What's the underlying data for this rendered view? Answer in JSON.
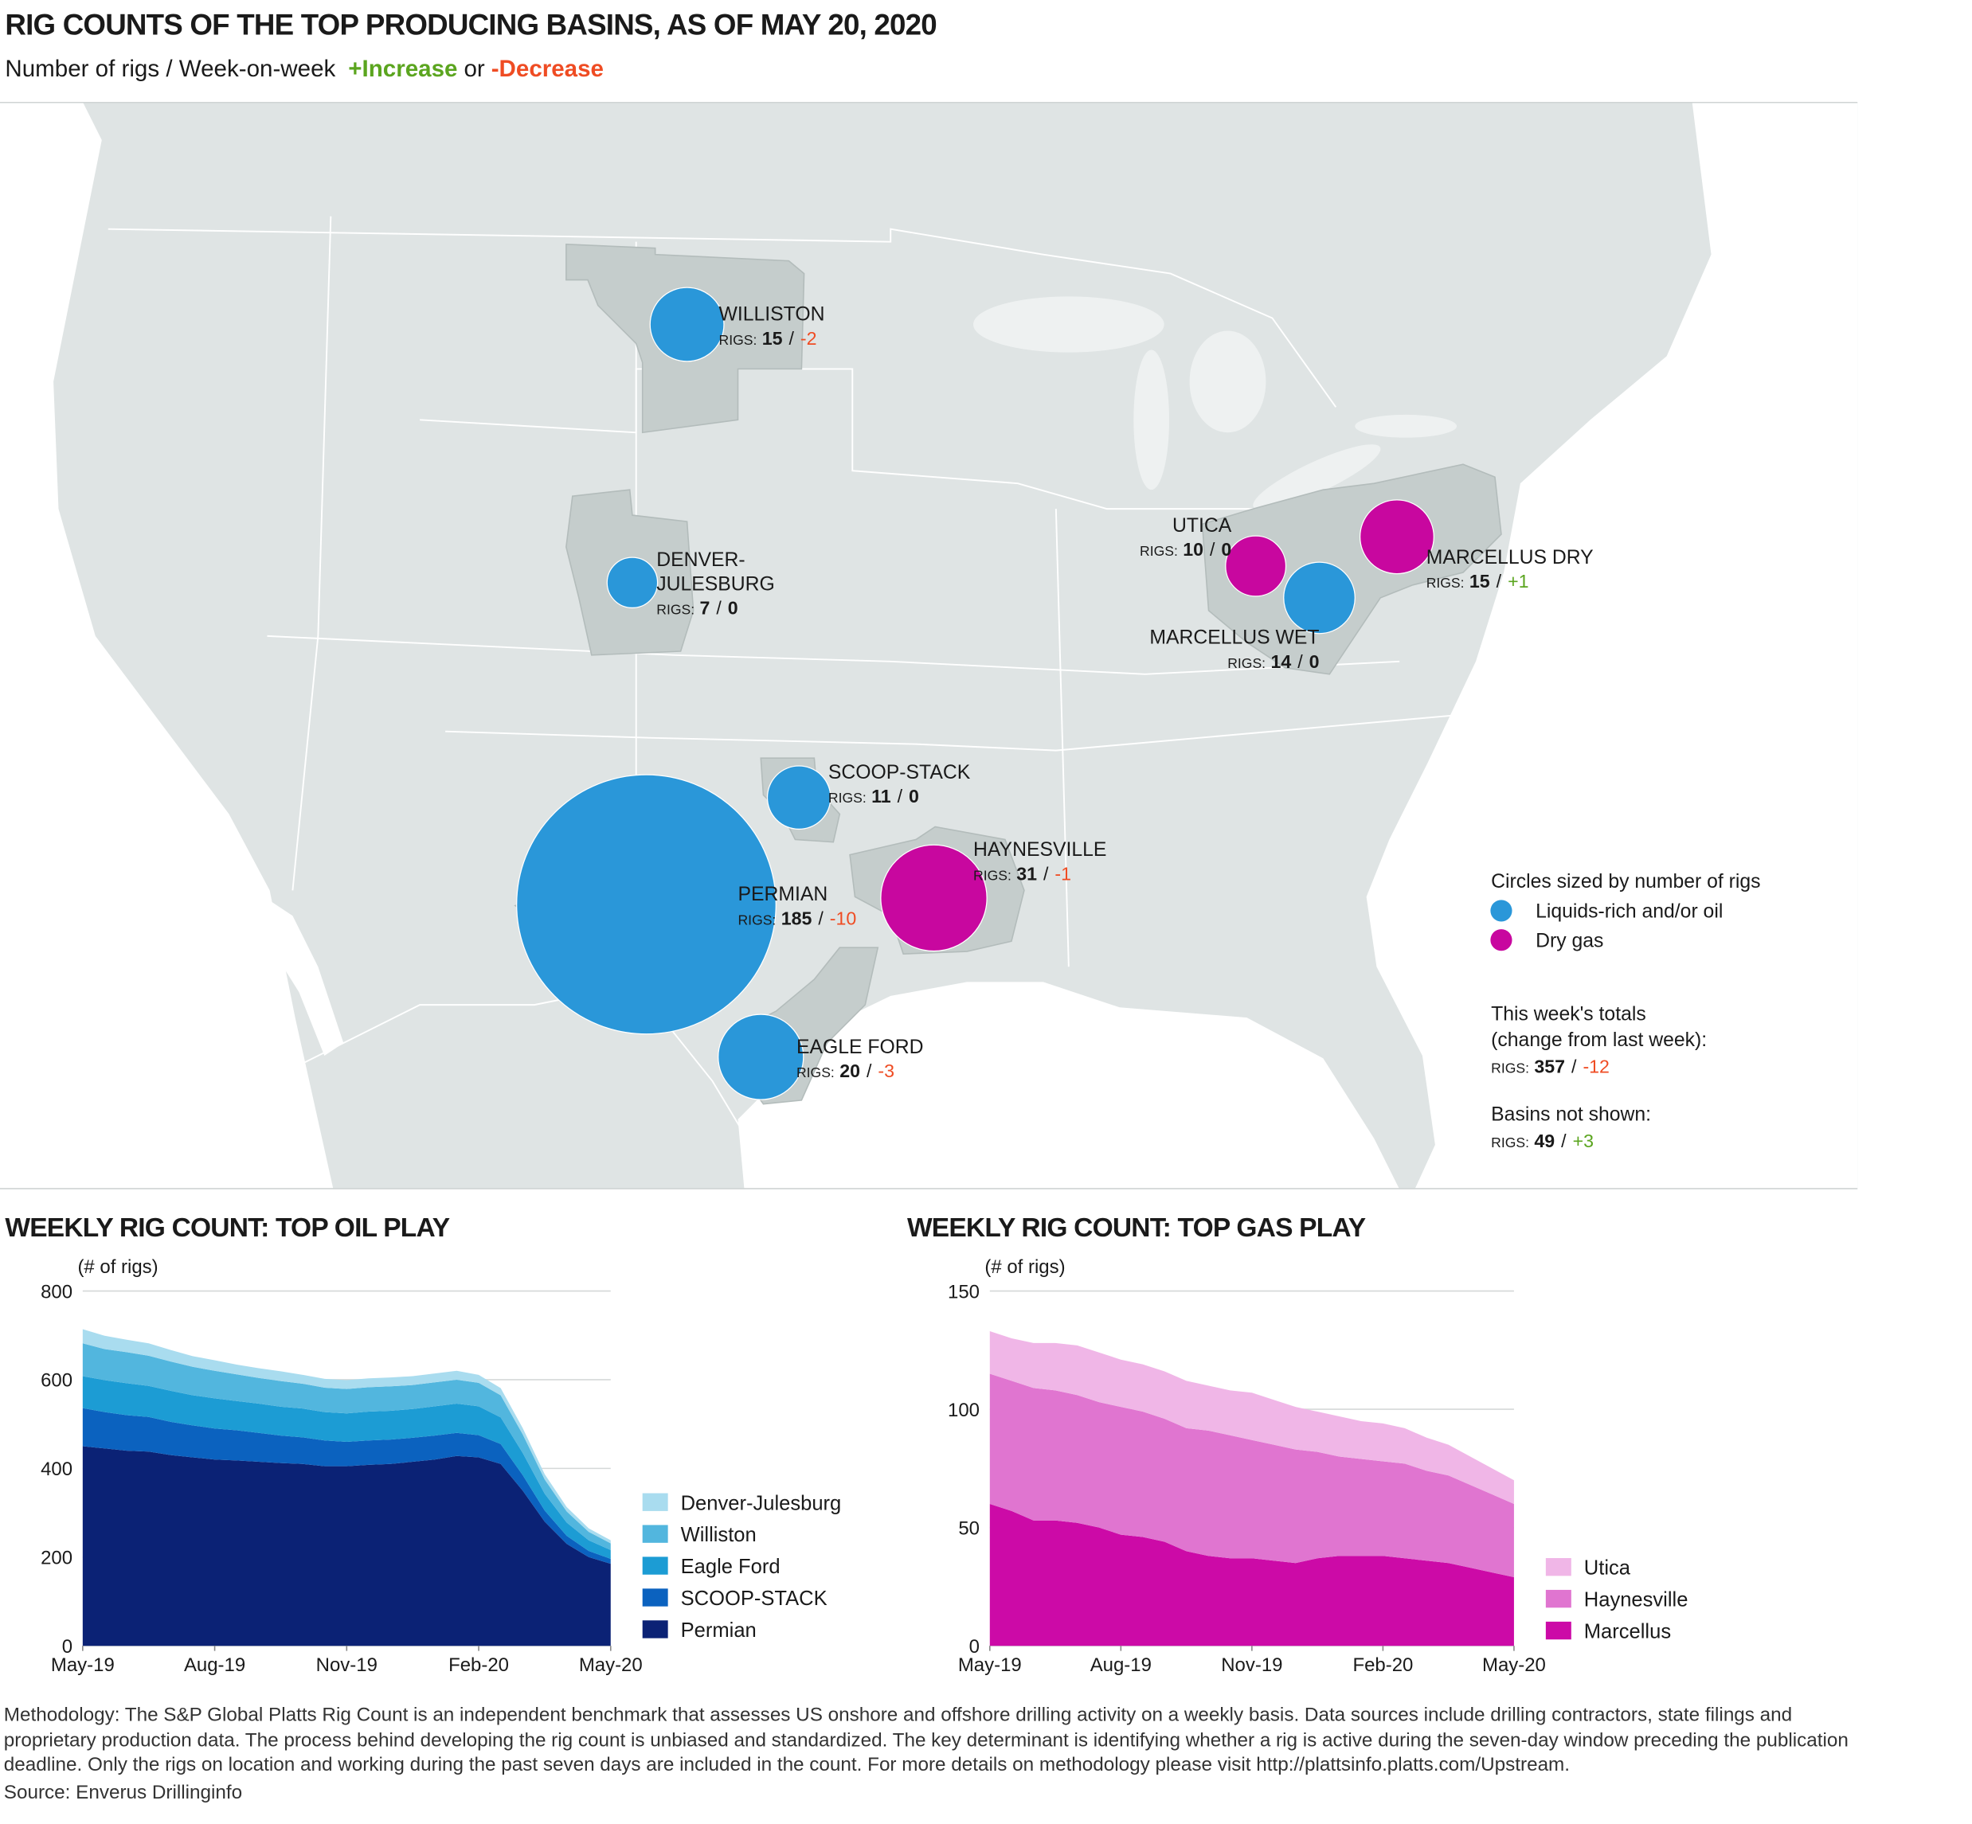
{
  "header": {
    "title": "RIG COUNTS OF THE TOP PRODUCING BASINS, AS OF MAY 20, 2020",
    "subtitle": "Number of rigs / Week-on-week",
    "increase": "+Increase",
    "or": "or",
    "decrease": "-Decrease"
  },
  "map": {
    "rigs_label": "RIGS:",
    "separator": "/",
    "increase_color": "#5ba51f",
    "decrease_color": "#ef4c23",
    "basins": [
      {
        "name_lines": [
          "WILLISTON"
        ],
        "rigs": 15,
        "change": -2,
        "kind": "oil"
      },
      {
        "name_lines": [
          "DENVER-",
          "JULESBURG"
        ],
        "rigs": 7,
        "change": 0,
        "kind": "oil"
      },
      {
        "name_lines": [
          "SCOOP-STACK"
        ],
        "rigs": 11,
        "change": 0,
        "kind": "oil"
      },
      {
        "name_lines": [
          "PERMIAN"
        ],
        "rigs": 185,
        "change": -10,
        "kind": "oil"
      },
      {
        "name_lines": [
          "EAGLE FORD"
        ],
        "rigs": 20,
        "change": -3,
        "kind": "oil"
      },
      {
        "name_lines": [
          "HAYNESVILLE"
        ],
        "rigs": 31,
        "change": -1,
        "kind": "gas"
      },
      {
        "name_lines": [
          "UTICA"
        ],
        "rigs": 10,
        "change": 0,
        "kind": "gas"
      },
      {
        "name_lines": [
          "MARCELLUS DRY"
        ],
        "rigs": 15,
        "change": {
          "value": 1,
          "label": "+1"
        },
        "kind": "gas"
      },
      {
        "name_lines": [
          "MARCELLUS WET"
        ],
        "rigs": 14,
        "change": 0,
        "kind": "oil"
      }
    ],
    "legend": {
      "title": "Circles sized by number of rigs",
      "items": [
        {
          "label": "Liquids-rich and/or oil",
          "kind": "oil",
          "color": "#2a97d9"
        },
        {
          "label": "Dry gas",
          "kind": "gas",
          "color": "#c8079f"
        }
      ]
    },
    "totals": {
      "lines": [
        "This week's totals",
        "(change from last week):"
      ],
      "rigs": 357,
      "change": -12
    },
    "not_shown": {
      "lines": [
        "Basins not shown:"
      ],
      "rigs": 49,
      "change": {
        "value": 3,
        "label": "+3"
      }
    }
  },
  "chart_data": [
    {
      "type": "area",
      "stacked": true,
      "title": "WEEKLY RIG COUNT: TOP OIL PLAY",
      "y_label": "(# of rigs)",
      "categories": [
        "May-19",
        null,
        null,
        null,
        null,
        null,
        "Aug-19",
        null,
        null,
        null,
        null,
        null,
        "Nov-19",
        null,
        null,
        null,
        null,
        null,
        "Feb-20",
        null,
        null,
        null,
        null,
        null,
        "May-20"
      ],
      "ylim": [
        0,
        800
      ],
      "yticks": [
        0,
        200,
        400,
        600,
        800
      ],
      "grid": true,
      "series": [
        {
          "name": "Permian",
          "color": "#0b2275",
          "values": [
            450,
            445,
            440,
            438,
            430,
            425,
            420,
            418,
            415,
            412,
            410,
            405,
            405,
            408,
            410,
            415,
            420,
            428,
            425,
            410,
            350,
            280,
            230,
            200,
            185
          ]
        },
        {
          "name": "SCOOP-STACK",
          "color": "#0b62bf",
          "values": [
            86,
            82,
            80,
            78,
            75,
            72,
            70,
            68,
            65,
            62,
            60,
            58,
            55,
            55,
            55,
            54,
            54,
            52,
            50,
            45,
            35,
            25,
            18,
            14,
            11
          ]
        },
        {
          "name": "Eagle Ford",
          "color": "#1c9cd4",
          "values": [
            72,
            72,
            72,
            70,
            70,
            68,
            68,
            66,
            66,
            65,
            65,
            64,
            64,
            65,
            65,
            65,
            66,
            66,
            65,
            60,
            50,
            38,
            30,
            24,
            20
          ]
        },
        {
          "name": "Williston",
          "color": "#52b6de",
          "values": [
            74,
            70,
            70,
            68,
            66,
            64,
            62,
            60,
            58,
            58,
            56,
            55,
            55,
            55,
            55,
            54,
            54,
            54,
            53,
            50,
            42,
            32,
            25,
            19,
            15
          ]
        },
        {
          "name": "Denver-Julesburg",
          "color": "#a9dcef",
          "values": [
            32,
            30,
            28,
            28,
            26,
            24,
            24,
            22,
            22,
            22,
            20,
            20,
            20,
            20,
            20,
            20,
            20,
            20,
            18,
            16,
            14,
            12,
            10,
            8,
            7
          ]
        }
      ]
    },
    {
      "type": "area",
      "stacked": true,
      "title": "WEEKLY RIG COUNT: TOP GAS PLAY",
      "y_label": "(# of rigs)",
      "categories": [
        "May-19",
        null,
        null,
        null,
        null,
        null,
        "Aug-19",
        null,
        null,
        null,
        null,
        null,
        "Nov-19",
        null,
        null,
        null,
        null,
        null,
        "Feb-20",
        null,
        null,
        null,
        null,
        null,
        "May-20"
      ],
      "ylim": [
        0,
        150
      ],
      "yticks": [
        0,
        50,
        100,
        150
      ],
      "grid": true,
      "series": [
        {
          "name": "Marcellus",
          "color": "#cc0aa7",
          "values": [
            60,
            57,
            53,
            53,
            52,
            50,
            47,
            46,
            44,
            40,
            38,
            37,
            37,
            36,
            35,
            37,
            38,
            38,
            38,
            37,
            36,
            35,
            33,
            31,
            29
          ]
        },
        {
          "name": "Haynesville",
          "color": "#e075d0",
          "values": [
            55,
            55,
            56,
            55,
            54,
            53,
            54,
            53,
            52,
            52,
            53,
            52,
            50,
            49,
            48,
            45,
            42,
            41,
            40,
            40,
            38,
            37,
            35,
            33,
            31
          ]
        },
        {
          "name": "Utica",
          "color": "#f0b6e7",
          "values": [
            18,
            18,
            19,
            20,
            21,
            21,
            20,
            20,
            20,
            20,
            19,
            19,
            20,
            19,
            18,
            17,
            17,
            16,
            16,
            15,
            14,
            13,
            12,
            11,
            10
          ]
        }
      ]
    }
  ],
  "footer": {
    "methodology": "Methodology: The S&P Global Platts Rig Count is an independent benchmark that assesses US onshore and offshore drilling activity on a weekly basis. Data sources include drilling contractors, state filings and proprietary production data. The process behind developing the rig count is unbiased and standardized. The key determinant is identifying whether a rig is active during the seven-day window preceding the publication deadline. Only the rigs on location and working during the past seven days are included in the count. For more details on methodology please visit http://plattsinfo.platts.com/Upstream.",
    "source": "Source: Enverus Drillinginfo"
  }
}
